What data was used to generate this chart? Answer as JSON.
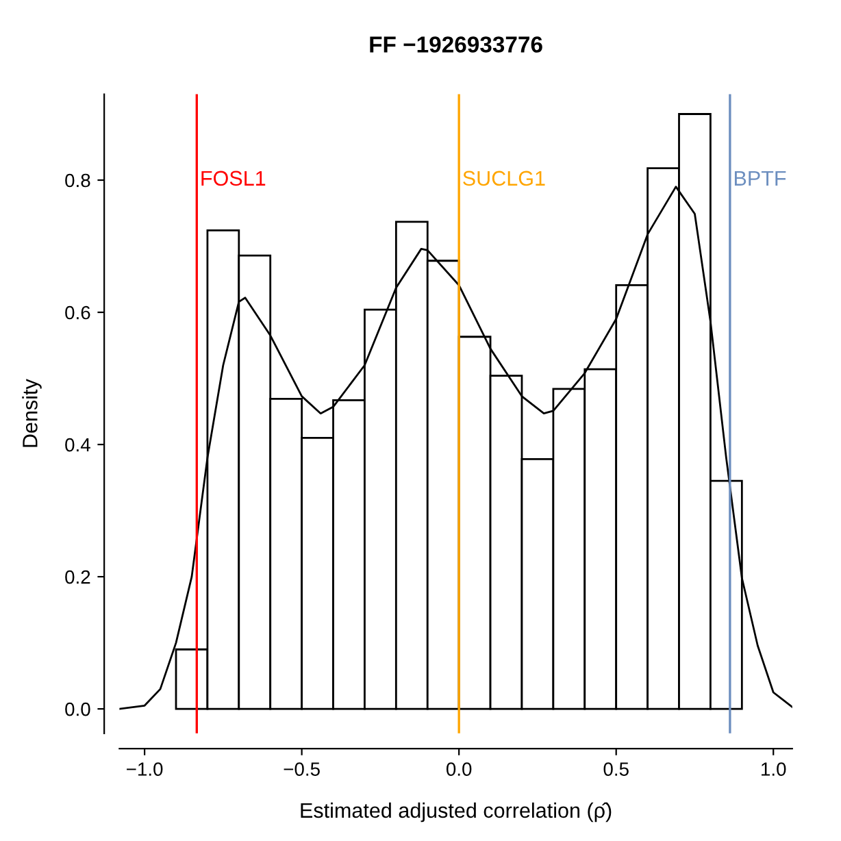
{
  "chart_data": {
    "type": "histogram",
    "title": "FF −1926933776",
    "xlabel": "Estimated adjusted correlation (ρ̂)",
    "ylabel": "Density",
    "series": [
      {
        "color": "#ffffff",
        "bins": [
          -0.9,
          -0.8,
          -0.7,
          -0.6,
          -0.5,
          -0.4,
          -0.3,
          -0.2,
          -0.1,
          0.0,
          0.1,
          0.2,
          0.3,
          0.4,
          0.5,
          0.6,
          0.7,
          0.8,
          0.9
        ],
        "values": [
          0.09,
          0.724,
          0.686,
          0.469,
          0.41,
          0.467,
          0.604,
          0.737,
          0.678,
          0.563,
          0.504,
          0.378,
          0.484,
          0.514,
          0.641,
          0.818,
          0.9,
          0.345
        ]
      },
      {
        "type": "line",
        "color": "#000000",
        "x": [
          -1.08,
          -1.0,
          -0.95,
          -0.9,
          -0.85,
          -0.8,
          -0.75,
          -0.7,
          -0.68,
          -0.6,
          -0.5,
          -0.44,
          -0.4,
          -0.3,
          -0.2,
          -0.12,
          -0.1,
          0.0,
          0.1,
          0.2,
          0.27,
          0.3,
          0.4,
          0.5,
          0.6,
          0.69,
          0.75,
          0.8,
          0.85,
          0.9,
          0.95,
          1.0,
          1.06
        ],
        "values": [
          0.0,
          0.005,
          0.03,
          0.1,
          0.2,
          0.38,
          0.52,
          0.616,
          0.622,
          0.565,
          0.473,
          0.447,
          0.457,
          0.52,
          0.637,
          0.696,
          0.694,
          0.641,
          0.545,
          0.473,
          0.447,
          0.451,
          0.508,
          0.59,
          0.718,
          0.79,
          0.749,
          0.586,
          0.38,
          0.198,
          0.096,
          0.025,
          0.003
        ]
      }
    ],
    "xlim": [
      -1.08,
      1.06
    ],
    "ylim": [
      -0.037,
      0.93
    ],
    "xticks": [
      {
        "value": -1.0,
        "label": "−1.0"
      },
      {
        "value": -0.5,
        "label": "−0.5"
      },
      {
        "value": 0.0,
        "label": "0.0"
      },
      {
        "value": 0.5,
        "label": "0.5"
      },
      {
        "value": 1.0,
        "label": "1.0"
      }
    ],
    "yticks": [
      {
        "value": 0.0,
        "label": "0.0"
      },
      {
        "value": 0.2,
        "label": "0.2"
      },
      {
        "value": 0.4,
        "label": "0.4"
      },
      {
        "value": 0.6,
        "label": "0.6"
      },
      {
        "value": 0.8,
        "label": "0.8"
      }
    ],
    "ref_lines": [
      {
        "axis": "x",
        "value": -0.834,
        "label": "FOSL1",
        "color": "#ff0000"
      },
      {
        "axis": "x",
        "value": 0.0,
        "label": "SUCLG1",
        "color": "#ffa500"
      },
      {
        "axis": "x",
        "value": 0.862,
        "label": "BPTF",
        "color": "#6c8ebf"
      }
    ],
    "grid": false,
    "legend": false
  }
}
